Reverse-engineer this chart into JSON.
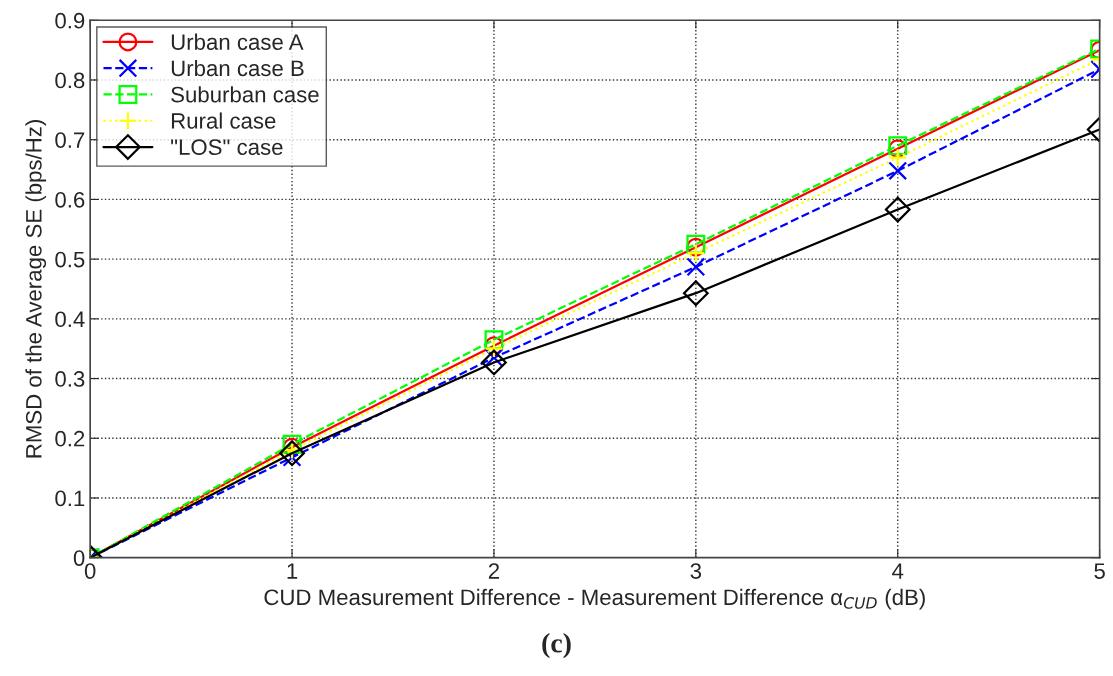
{
  "chart_data": {
    "type": "line",
    "xlabel": "CUD Measurement Difference - Measurement Difference α$_{CUD}$ (dB)",
    "ylabel": "RMSD of the Average SE (bps/Hz)",
    "annotations": [
      "(c)"
    ],
    "x": [
      0,
      1,
      2,
      3,
      4,
      5
    ],
    "xlim": [
      0,
      5
    ],
    "xticks": [
      0,
      1,
      2,
      3,
      4,
      5
    ],
    "ylim": [
      0,
      0.9
    ],
    "yticks": [
      0,
      0.1,
      0.2,
      0.3,
      0.4,
      0.5,
      0.6,
      0.7,
      0.8,
      0.9
    ],
    "grid": true,
    "legend": "top left",
    "series": [
      {
        "name": "Urban case A",
        "color": "#ff0000",
        "marker": "circle",
        "line_style": "solid",
        "values": [
          0,
          0.185,
          0.355,
          0.52,
          0.685,
          0.85
        ]
      },
      {
        "name": "Urban case B",
        "color": "#0000ff",
        "marker": "cross",
        "line_style": "dashed",
        "values": [
          0,
          0.168,
          0.335,
          0.487,
          0.648,
          0.818
        ]
      },
      {
        "name": "Suburban case",
        "color": "#00ff00",
        "marker": "square",
        "line_style": "dashed",
        "values": [
          0,
          0.19,
          0.365,
          0.525,
          0.69,
          0.852
        ]
      },
      {
        "name": "Rural case",
        "color": "#ffff00",
        "marker": "plus",
        "line_style": "dotted",
        "values": [
          0,
          0.18,
          0.35,
          0.51,
          0.67,
          0.835
        ]
      },
      {
        "name": "\"LOS\" case",
        "color": "#000000",
        "marker": "diamond",
        "line_style": "solid",
        "values": [
          0,
          0.175,
          0.327,
          0.443,
          0.583,
          0.717
        ]
      }
    ]
  }
}
